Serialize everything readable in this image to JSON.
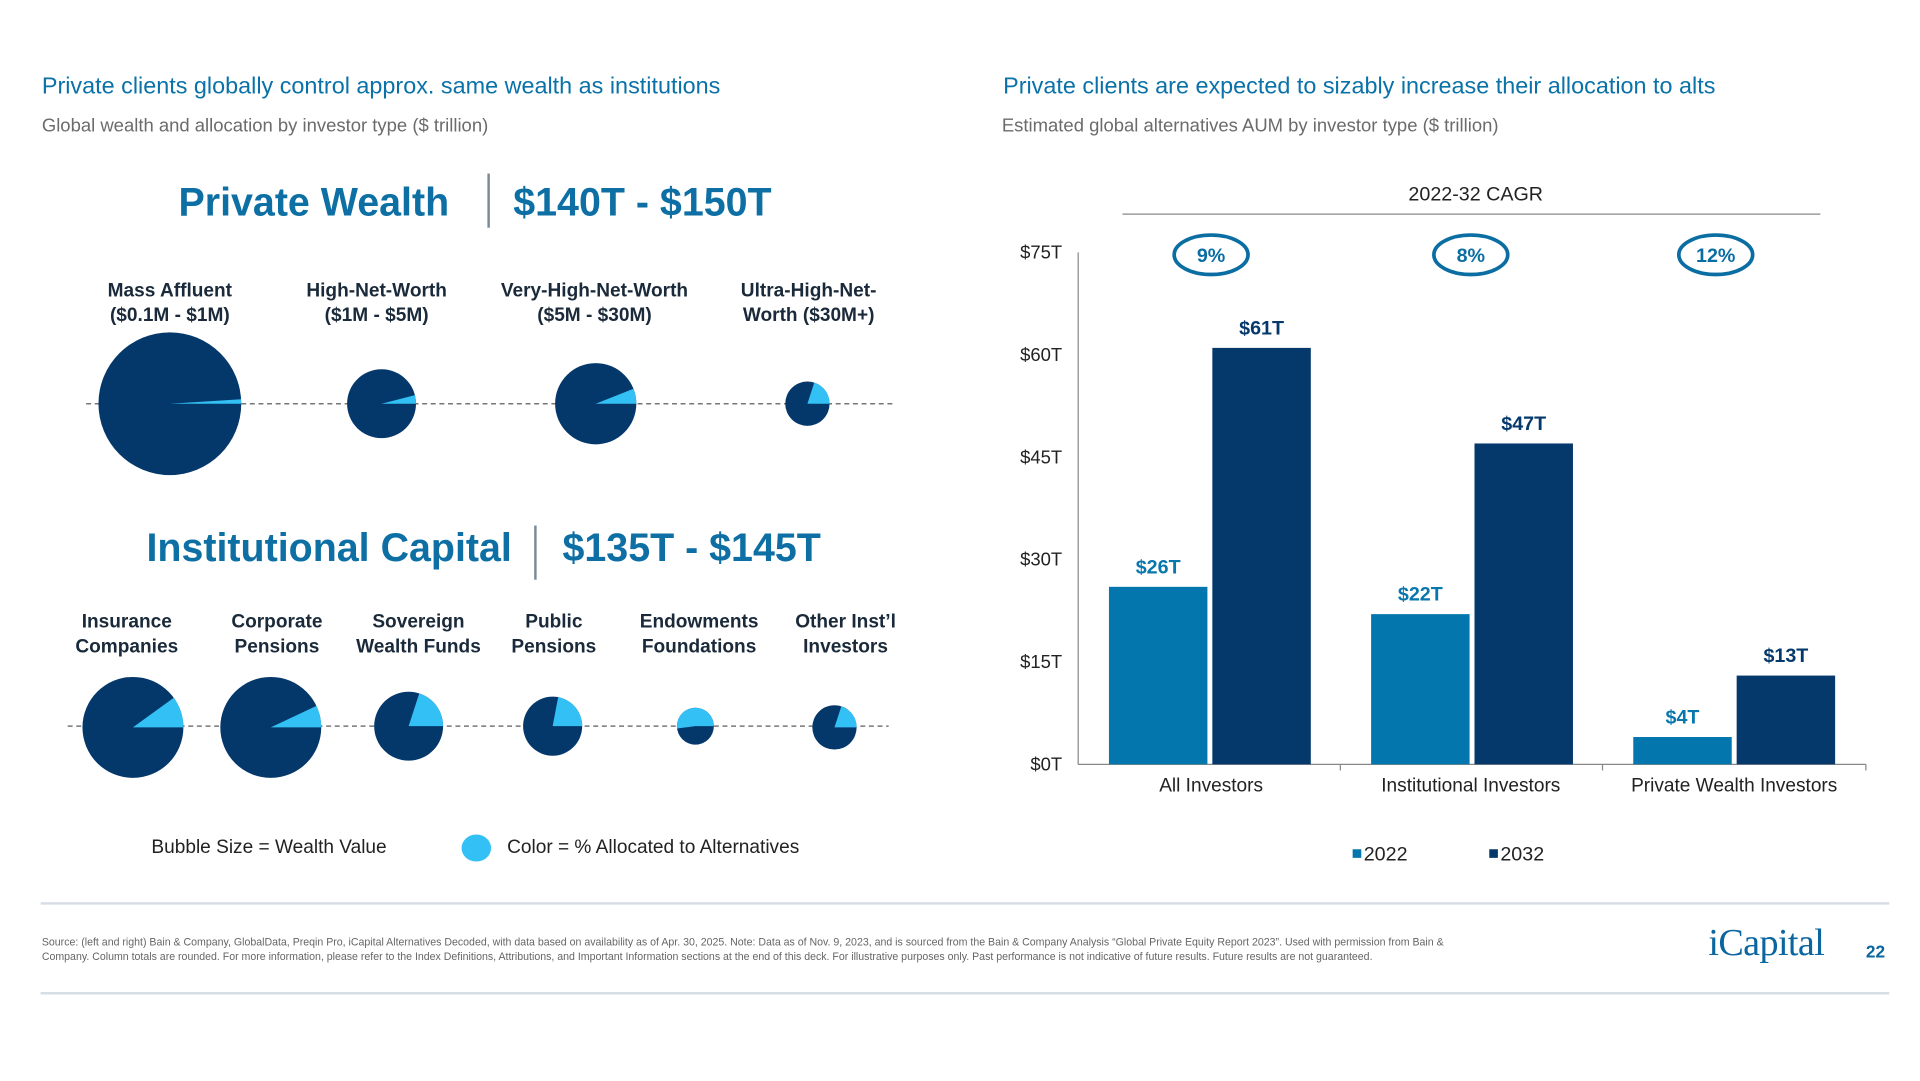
{
  "left": {
    "title": "Private clients globally control approx. same wealth as institutions",
    "subtitle": "Global wealth and allocation by investor type ($ trillion)",
    "private": {
      "heading": "Private Wealth",
      "range": "$140T - $150T",
      "groups": [
        {
          "line1": "Mass Affluent",
          "line2": "($0.1M - $1M)",
          "alt_pct": 1
        },
        {
          "line1": "High-Net-Worth",
          "line2": "($1M - $5M)",
          "alt_pct": 4
        },
        {
          "line1": "Very-High-Net-Worth",
          "line2": "($5M - $30M)",
          "alt_pct": 6
        },
        {
          "line1": "Ultra-High-Net-",
          "line2": "Worth ($30M+)",
          "alt_pct": 20
        }
      ]
    },
    "institutional": {
      "heading": "Institutional Capital",
      "range": "$135T - $145T",
      "groups": [
        {
          "line1": "Insurance",
          "line2": "Companies",
          "alt_pct": 10
        },
        {
          "line1": "Corporate",
          "line2": "Pensions",
          "alt_pct": 7
        },
        {
          "line1": "Sovereign",
          "line2": "Wealth Funds",
          "alt_pct": 20
        },
        {
          "line1": "Public",
          "line2": "Pensions",
          "alt_pct": 22
        },
        {
          "line1": "Endowments",
          "line2": "Foundations",
          "alt_pct": 52
        },
        {
          "line1": "Other Inst’l",
          "line2": "Investors",
          "alt_pct": 20
        }
      ]
    },
    "legend": {
      "size": "Bubble Size = Wealth Value",
      "color": "Color = % Allocated to Alternatives"
    },
    "colors": {
      "wealth": "#04386b",
      "alternatives": "#33c0f5"
    }
  },
  "right": {
    "title": "Private clients are expected to sizably increase their allocation to alts",
    "subtitle": "Estimated global alternatives AUM by investor type ($ trillion)"
  },
  "chart_data": {
    "type": "bar",
    "categories": [
      "All Investors",
      "Institutional Investors",
      "Private Wealth Investors"
    ],
    "series": [
      {
        "name": "2022",
        "values": [
          26,
          22,
          4
        ],
        "labels": [
          "$26T",
          "$22T",
          "$4T"
        ],
        "color": "#0377ad"
      },
      {
        "name": "2032",
        "values": [
          61,
          47,
          13
        ],
        "labels": [
          "$61T",
          "$47T",
          "$13T"
        ],
        "color": "#05386b"
      }
    ],
    "ylim": [
      0,
      75
    ],
    "yticks": [
      "$0T",
      "$15T",
      "$30T",
      "$45T",
      "$60T",
      "$75T"
    ],
    "cagr_title": "2022-32 CAGR",
    "cagr": [
      "9%",
      "8%",
      "12%"
    ],
    "legend_placement": "bottom",
    "grid": false
  },
  "footer": {
    "source_line1": "Source: (left and right) Bain & Company, GlobalData, Preqin Pro, iCapital Alternatives Decoded, with data based on availability as of Apr. 30, 2025. Note: Data as of Nov. 9, 2023, and is sourced from the Bain & Company Analysis “Global Private Equity Report 2023”. Used with permission from Bain &",
    "source_line2": "Company. Column totals are rounded. For more information, please refer to the Index Definitions, Attributions, and Important Information sections at the end of this deck. For illustrative purposes only. Past performance is not indicative of future results. Future results are not guaranteed.",
    "logo": "iCapital",
    "page": "22"
  }
}
